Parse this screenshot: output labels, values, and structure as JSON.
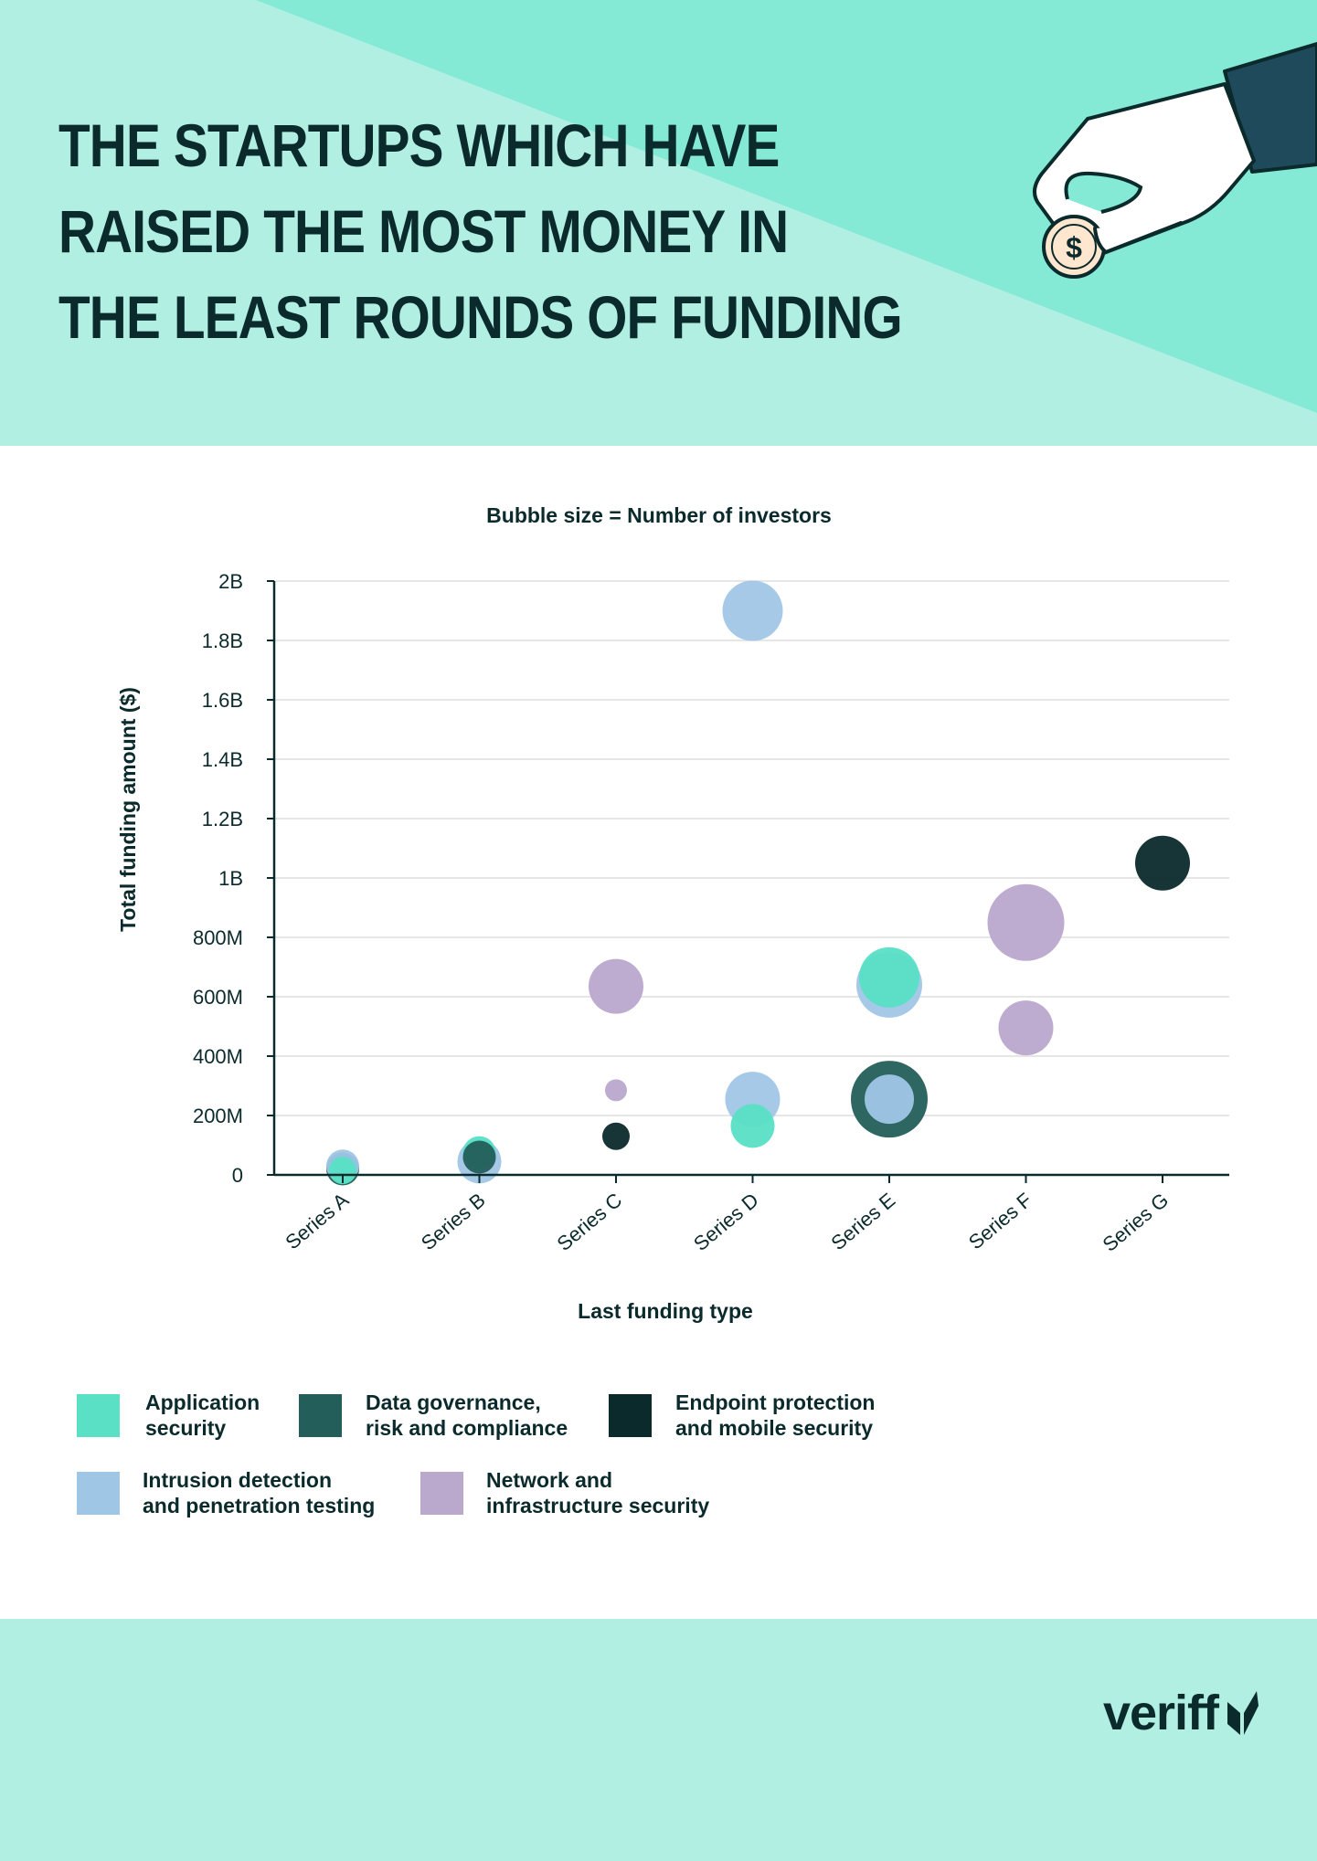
{
  "header": {
    "title_lines": [
      "THE STARTUPS WHICH HAVE",
      "RAISED THE MOST MONEY IN",
      "THE LEAST ROUNDS OF FUNDING"
    ],
    "coin_symbol": "$",
    "colors": {
      "background": "#b1efe3",
      "accent": "#84e9d5",
      "ink": "#0b2a2c"
    }
  },
  "chart_data": {
    "type": "bubble",
    "title": "Bubble size = Number of investors",
    "xlabel": "Last funding type",
    "ylabel": "Total funding amount ($)",
    "categories": [
      "Series A",
      "Series B",
      "Series C",
      "Series D",
      "Series E",
      "Series F",
      "Series G"
    ],
    "ylim": [
      0,
      2000000000
    ],
    "yticks": [
      0,
      200000000,
      400000000,
      600000000,
      800000000,
      1000000000,
      1200000000,
      1400000000,
      1600000000,
      1800000000,
      2000000000
    ],
    "ytick_labels": [
      "0",
      "200M",
      "400M",
      "600M",
      "800M",
      "1B",
      "1.2B",
      "1.4B",
      "1.6B",
      "1.8B",
      "2B"
    ],
    "grid": true,
    "legend_position": "bottom",
    "series": [
      {
        "name": "Application security",
        "color": "#59e0c5",
        "points": [
          {
            "x": "Series A",
            "y": 15000000,
            "size": 5
          },
          {
            "x": "Series B",
            "y": 75000000,
            "size": 6
          },
          {
            "x": "Series D",
            "y": 165000000,
            "size": 8
          },
          {
            "x": "Series E",
            "y": 665000000,
            "size": 11
          }
        ]
      },
      {
        "name": "Data governance, risk and compliance",
        "color": "#235e5a",
        "points": [
          {
            "x": "Series A",
            "y": 20000000,
            "size": 6
          },
          {
            "x": "Series B",
            "y": 60000000,
            "size": 6
          },
          {
            "x": "Series E",
            "y": 255000000,
            "size": 14
          }
        ]
      },
      {
        "name": "Endpoint protection and mobile security",
        "color": "#0b2a2c",
        "points": [
          {
            "x": "Series C",
            "y": 130000000,
            "size": 5
          },
          {
            "x": "Series G",
            "y": 1050000000,
            "size": 10
          }
        ]
      },
      {
        "name": "Intrusion detection and penetration testing",
        "color": "#a0c6e6",
        "points": [
          {
            "x": "Series A",
            "y": 30000000,
            "size": 6
          },
          {
            "x": "Series B",
            "y": 45000000,
            "size": 8
          },
          {
            "x": "Series D",
            "y": 255000000,
            "size": 10
          },
          {
            "x": "Series D",
            "y": 1900000000,
            "size": 11
          },
          {
            "x": "Series E",
            "y": 640000000,
            "size": 12
          },
          {
            "x": "Series E",
            "y": 255000000,
            "size": 9
          }
        ]
      },
      {
        "name": "Network and infrastructure security",
        "color": "#bba8cd",
        "points": [
          {
            "x": "Series C",
            "y": 285000000,
            "size": 4
          },
          {
            "x": "Series C",
            "y": 635000000,
            "size": 10
          },
          {
            "x": "Series F",
            "y": 495000000,
            "size": 10
          },
          {
            "x": "Series F",
            "y": 850000000,
            "size": 14
          }
        ]
      }
    ]
  },
  "legend": {
    "items": [
      {
        "line1": "Application",
        "line2": "security",
        "color": "#59e0c5"
      },
      {
        "line1": "Data governance,",
        "line2": "risk and compliance",
        "color": "#235e5a"
      },
      {
        "line1": "Endpoint protection",
        "line2": "and mobile security",
        "color": "#0b2a2c"
      },
      {
        "line1": "Intrusion detection",
        "line2": "and penetration testing",
        "color": "#a0c6e6"
      },
      {
        "line1": "Network and",
        "line2": "infrastructure security",
        "color": "#bba8cd"
      }
    ]
  },
  "footer": {
    "logo_text": "veriff"
  }
}
